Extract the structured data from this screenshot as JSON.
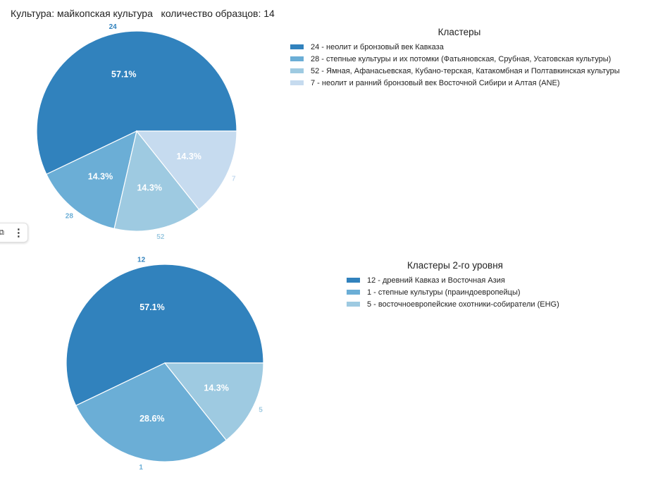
{
  "header": {
    "title": "Культура: майкопская культура   количество образцов: 14"
  },
  "toolbar": {
    "copy_icon": "copy-icon",
    "menu_icon": "more-vertical-icon",
    "menu_glyph": "⋮",
    "copy_glyph": "⧉"
  },
  "chart_data": [
    {
      "type": "pie",
      "legend_title": "Кластеры",
      "legend_position": "right",
      "slices": [
        {
          "label": "24",
          "legend": "24 - неолит и бронзовый век Кавказа",
          "value": 57.1,
          "pct_label": "57.1%",
          "color": "#3182bd"
        },
        {
          "label": "28",
          "legend": "28 - степные культуры и их потомки (Фатьяновская, Срубная, Усатовская культуры)",
          "value": 14.3,
          "pct_label": "14.3%",
          "color": "#6baed6"
        },
        {
          "label": "52",
          "legend": "52 - Ямная, Афанасьевская, Кубано-терская, Катакомбная и Полтавкинская культуры",
          "value": 14.3,
          "pct_label": "14.3%",
          "color": "#9ecae1"
        },
        {
          "label": "7",
          "legend": "7 - неолит и ранний бронзовый век Восточной Сибири и Алтая (ANE)",
          "value": 14.3,
          "pct_label": "14.3%",
          "color": "#c6dbef"
        }
      ]
    },
    {
      "type": "pie",
      "legend_title": "Кластеры 2-го уровня",
      "legend_position": "right",
      "slices": [
        {
          "label": "12",
          "legend": "12 - древний Кавказ и Восточная Азия",
          "value": 57.1,
          "pct_label": "57.1%",
          "color": "#3182bd"
        },
        {
          "label": "1",
          "legend": "1 - степные культуры (праиндоевропейцы)",
          "value": 28.6,
          "pct_label": "28.6%",
          "color": "#6baed6"
        },
        {
          "label": "5",
          "legend": "5 - восточноевропейские охотники-собиратели (EHG)",
          "value": 14.3,
          "pct_label": "14.3%",
          "color": "#9ecae1"
        }
      ]
    }
  ]
}
